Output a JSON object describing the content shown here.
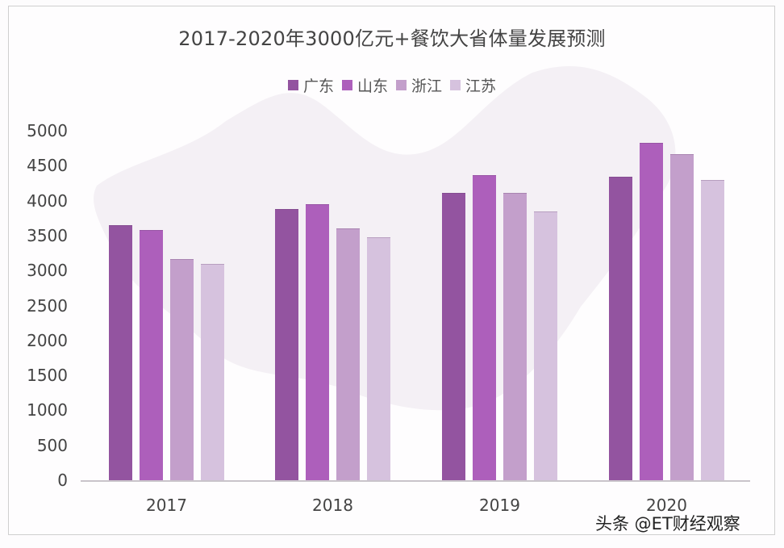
{
  "chart_data": {
    "type": "bar",
    "title": "2017-2020年3000亿元+餐饮大省体量发展预测",
    "xlabel": "",
    "ylabel": "",
    "categories": [
      "2017",
      "2018",
      "2019",
      "2020"
    ],
    "series": [
      {
        "name": "广东",
        "color": "#9354a0",
        "values": [
          3650,
          3880,
          4110,
          4340
        ]
      },
      {
        "name": "山东",
        "color": "#ad5fbb",
        "values": [
          3580,
          3950,
          4370,
          4830
        ]
      },
      {
        "name": "浙江",
        "color": "#c39fcb",
        "values": [
          3160,
          3600,
          4110,
          4670
        ]
      },
      {
        "name": "江苏",
        "color": "#d6c2de",
        "values": [
          3095,
          3470,
          3850,
          4300
        ]
      }
    ],
    "yticks": [
      "0",
      "500",
      "1000",
      "1500",
      "2000",
      "2500",
      "3000",
      "3500",
      "4000",
      "4500",
      "5000"
    ],
    "ylim": [
      0,
      5000
    ],
    "grid": false,
    "legend_position": "top"
  },
  "watermark": "头条 @ET财经观察"
}
